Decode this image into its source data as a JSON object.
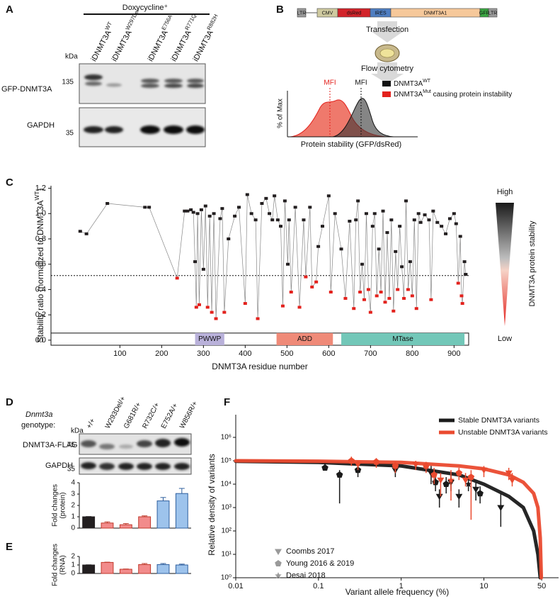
{
  "panel_labels": [
    "A",
    "B",
    "C",
    "D",
    "E",
    "F"
  ],
  "panel_a": {
    "condition": "Doxycycline⁺",
    "lanes": [
      {
        "name": "iDNMT3A",
        "sup": "WT"
      },
      {
        "name": "iDNMT3A",
        "sup": "W297Del"
      },
      {
        "name": "iDNMT3A",
        "sup": "E756A"
      },
      {
        "name": "iDNMT3A",
        "sup": "R771Q"
      },
      {
        "name": "iDNMT3A",
        "sup": "R882H"
      }
    ],
    "kda_label": "kDa",
    "markers": [
      135,
      35
    ],
    "blots": [
      "GFP-DNMT3A",
      "GAPDH"
    ]
  },
  "panel_b": {
    "vector": [
      "LTR",
      "CMV",
      "dsRed",
      "IRES",
      "DNMT3A1",
      "GFP",
      "LTR"
    ],
    "steps": [
      "Transfection",
      "Flow cytometry"
    ],
    "mfi": [
      "MFI",
      "MFI"
    ],
    "legend": [
      {
        "name": "DNMT3A",
        "sup": "WT"
      },
      {
        "name": "DNMT3A",
        "sup": "Mut",
        "rest": " causing protein instability"
      }
    ],
    "ylabel": "% of Max",
    "xlabel": "Protein stability (GFP/dsRed)"
  },
  "panel_d_blot": {
    "gene": "Dnmt3a",
    "genotype_label": "genotype:",
    "kda_label": "kDa",
    "markers": [
      75,
      35
    ],
    "blots": [
      "DNMT3A-FLAG",
      "GAPDH"
    ]
  },
  "chart_data": [
    {
      "type": "line",
      "ylabel": "Stability ratio (normalized to DNMT3A",
      "ylabel_sup": "WT",
      "ylabel_end": ")",
      "xlabel": "DNMT3A residue number",
      "x": [
        5,
        20,
        70,
        160,
        170,
        237,
        255,
        262,
        270,
        276,
        280,
        283,
        286,
        290,
        295,
        300,
        305,
        310,
        315,
        320,
        325,
        330,
        340,
        345,
        350,
        360,
        375,
        385,
        400,
        405,
        415,
        425,
        430,
        440,
        450,
        458,
        465,
        470,
        478,
        485,
        490,
        495,
        502,
        505,
        510,
        520,
        530,
        540,
        545,
        555,
        560,
        570,
        575,
        585,
        600,
        605,
        615,
        630,
        640,
        650,
        660,
        665,
        670,
        675,
        680,
        685,
        690,
        695,
        700,
        705,
        710,
        715,
        720,
        725,
        730,
        735,
        740,
        745,
        750,
        755,
        760,
        765,
        770,
        775,
        780,
        785,
        790,
        795,
        800,
        805,
        810,
        815,
        820,
        830,
        840,
        845,
        850,
        860,
        870,
        880,
        890,
        900,
        905,
        910,
        915,
        918,
        920,
        925,
        928
      ],
      "values": [
        0.86,
        0.84,
        1.08,
        1.05,
        1.05,
        0.49,
        1.02,
        1.02,
        1.03,
        1.01,
        0.62,
        0.26,
        1.0,
        0.28,
        1.03,
        0.56,
        1.06,
        0.26,
        0.98,
        0.22,
        1.0,
        0.17,
        0.96,
        1.04,
        0.22,
        0.8,
        0.98,
        1.05,
        0.29,
        1.15,
        1.0,
        0.95,
        0.17,
        1.08,
        1.12,
        1.0,
        0.95,
        1.14,
        0.95,
        0.9,
        0.27,
        1.1,
        0.6,
        0.95,
        0.38,
        1.05,
        0.26,
        0.95,
        0.5,
        1.05,
        0.42,
        0.46,
        0.74,
        0.9,
        1.14,
        0.38,
        1.0,
        0.72,
        0.33,
        0.94,
        0.25,
        0.95,
        1.1,
        0.38,
        0.6,
        0.32,
        1.0,
        0.4,
        0.22,
        0.9,
        1.0,
        0.35,
        0.72,
        0.38,
        1.02,
        0.3,
        0.85,
        0.33,
        0.95,
        0.23,
        0.7,
        0.4,
        0.9,
        0.58,
        0.33,
        1.1,
        0.4,
        0.62,
        0.35,
        0.95,
        0.25,
        1.0,
        0.93,
        0.99,
        0.95,
        0.32,
        1.02,
        0.93,
        0.9,
        0.84,
        0.96,
        1.0,
        0.92,
        0.45,
        0.82,
        0.35,
        0.29,
        0.62,
        0.52
      ],
      "point_colors": [
        "#231f20",
        "#231f20",
        "#231f20",
        "#231f20",
        "#231f20",
        "#e3211c",
        "#231f20",
        "#231f20",
        "#231f20",
        "#231f20",
        "#231f20",
        "#e3211c",
        "#231f20",
        "#e3211c",
        "#231f20",
        "#231f20",
        "#231f20",
        "#e3211c",
        "#231f20",
        "#e3211c",
        "#231f20",
        "#e3211c",
        "#231f20",
        "#231f20",
        "#e3211c",
        "#231f20",
        "#231f20",
        "#231f20",
        "#e3211c",
        "#231f20",
        "#231f20",
        "#231f20",
        "#e3211c",
        "#231f20",
        "#231f20",
        "#231f20",
        "#231f20",
        "#231f20",
        "#231f20",
        "#231f20",
        "#e3211c",
        "#231f20",
        "#231f20",
        "#231f20",
        "#e3211c",
        "#231f20",
        "#e3211c",
        "#231f20",
        "#e3211c",
        "#231f20",
        "#e3211c",
        "#e3211c",
        "#231f20",
        "#231f20",
        "#231f20",
        "#e3211c",
        "#231f20",
        "#231f20",
        "#e3211c",
        "#231f20",
        "#e3211c",
        "#231f20",
        "#231f20",
        "#e3211c",
        "#231f20",
        "#e3211c",
        "#231f20",
        "#e3211c",
        "#e3211c",
        "#231f20",
        "#231f20",
        "#e3211c",
        "#231f20",
        "#e3211c",
        "#231f20",
        "#e3211c",
        "#231f20",
        "#e3211c",
        "#231f20",
        "#e3211c",
        "#231f20",
        "#e3211c",
        "#231f20",
        "#231f20",
        "#e3211c",
        "#231f20",
        "#e3211c",
        "#231f20",
        "#e3211c",
        "#231f20",
        "#e3211c",
        "#231f20",
        "#231f20",
        "#231f20",
        "#231f20",
        "#e3211c",
        "#231f20",
        "#231f20",
        "#231f20",
        "#231f20",
        "#231f20",
        "#231f20",
        "#231f20",
        "#e3211c",
        "#231f20",
        "#e3211c",
        "#e3211c",
        "#231f20",
        "#231f20"
      ],
      "line_color": "#888888",
      "threshold": 0.51,
      "xlim": [
        -65,
        935
      ],
      "ylim": [
        -0.04,
        1.22
      ],
      "xticks": [
        100,
        200,
        300,
        400,
        500,
        600,
        700,
        800,
        900
      ],
      "yticks": [
        {
          "value": 0,
          "label": "0.0"
        },
        0.2,
        0.4,
        0.6,
        0.8,
        {
          "value": 1,
          "label": "1.0"
        },
        1.2
      ],
      "domains": [
        {
          "name": "PWWP",
          "start": 280,
          "end": 350,
          "color": "#b9b1da"
        },
        {
          "name": "ADD",
          "start": 475,
          "end": 610,
          "color": "#ef8a78"
        },
        {
          "name": "MTase",
          "start": 630,
          "end": 925,
          "color": "#72c7b8"
        }
      ],
      "colorbar": {
        "high": "High",
        "low": "Low",
        "label": "DNMT3A protein stability"
      }
    },
    {
      "type": "bar",
      "categories": [
        "+/+",
        "W293Del/+",
        "G681R/+",
        "R732C/+",
        "E752A/+",
        "W856R/+"
      ],
      "values": [
        1.0,
        0.45,
        0.3,
        1.0,
        2.4,
        3.05
      ],
      "errors": [
        0.02,
        0.1,
        0.1,
        0.08,
        0.3,
        0.45
      ],
      "colors": [
        "#231f20",
        "#f28b8b",
        "#f28b8b",
        "#f28b8b",
        "#9dc3ec",
        "#9dc3ec"
      ],
      "edge_colors": [
        "#231f20",
        "#c0392b",
        "#c0392b",
        "#c0392b",
        "#2f5f9e",
        "#2f5f9e"
      ],
      "ylabel": [
        "Fold changes",
        "(protein)"
      ],
      "ylim": [
        0,
        4
      ],
      "yticks": [
        0,
        1,
        2,
        3,
        4
      ]
    },
    {
      "type": "bar",
      "categories": [
        null,
        null,
        null,
        null,
        null,
        null
      ],
      "values": [
        1.0,
        1.3,
        0.5,
        1.05,
        1.05,
        1.0
      ],
      "errors": [
        0.02,
        0.03,
        0.03,
        0.12,
        0.12,
        0.1
      ],
      "colors": [
        "#231f20",
        "#f28b8b",
        "#f28b8b",
        "#f28b8b",
        "#9dc3ec",
        "#9dc3ec"
      ],
      "edge_colors": [
        "#231f20",
        "#c0392b",
        "#c0392b",
        "#c0392b",
        "#2f5f9e",
        "#2f5f9e"
      ],
      "ylabel": [
        "Fold changes",
        "(RNA)"
      ],
      "ylim": [
        0,
        2
      ],
      "yticks": [
        0,
        1,
        2
      ]
    },
    {
      "type": "scatter",
      "xlabel": "Variant allele frequency (%)",
      "ylabel": "Relative density of variants",
      "log_x": true,
      "log_y": true,
      "xlim": [
        0.01,
        80
      ],
      "ylim": [
        1,
        1000000
      ],
      "xticks": [
        0.01,
        0.1,
        1,
        10,
        50
      ],
      "yticks": [
        {
          "value": 1,
          "label": "10⁰"
        },
        {
          "value": 10,
          "label": "10¹"
        },
        {
          "value": 100,
          "label": "10²"
        },
        {
          "value": 1000,
          "label": "10³"
        },
        {
          "value": 10000,
          "label": "10⁴"
        },
        {
          "value": 100000,
          "label": "10⁵"
        },
        {
          "value": 1000000,
          "label": "10⁶"
        }
      ],
      "legend": "upper right",
      "series": [
        {
          "name": "Stable DNMT3A variants",
          "color": "#1a1a1a",
          "curve_x": [
            0.01,
            0.1,
            1,
            5,
            10,
            20,
            30,
            40,
            45,
            48
          ],
          "curve": [
            95000,
            85000,
            60000,
            25000,
            10000,
            3000,
            1000,
            100,
            10,
            1
          ],
          "x": [
            0.12,
            0.18,
            0.3,
            0.85,
            2.3,
            2.6,
            2.9,
            3.5,
            4.0,
            5.0,
            6.5,
            8,
            9,
            16
          ],
          "values": [
            50000,
            25000,
            40000,
            40000,
            30000,
            12000,
            3000,
            10000,
            12000,
            3000,
            10000,
            6000,
            4000,
            1000
          ],
          "lower": [
            40000,
            1500,
            20000,
            20000,
            10000,
            5000,
            1000,
            4000,
            5000,
            1000,
            5000,
            2000,
            1500,
            150
          ],
          "upper": [
            80000,
            40000,
            60000,
            60000,
            60000,
            40000,
            6000,
            20000,
            25000,
            6000,
            20000,
            12000,
            8000,
            4000
          ],
          "shapes": [
            "pentagon",
            "pentagon",
            "pentagon",
            "triangle",
            "triangle",
            "pentagon",
            "triangle",
            "pentagon",
            "triangle",
            "triangle",
            "star",
            "triangle",
            "pentagon",
            "triangle"
          ]
        },
        {
          "name": "Unstable DNMT3A variants",
          "color": "#ea4a2f",
          "curve_x": [
            0.01,
            0.1,
            1,
            5,
            10,
            20,
            30,
            40,
            45,
            48,
            49.5
          ],
          "curve": [
            100000,
            96000,
            85000,
            60000,
            45000,
            25000,
            12000,
            4000,
            1000,
            50,
            1
          ],
          "x": [
            0.25,
            0.3,
            0.5,
            0.85,
            1.5,
            2.0,
            2.5,
            3.0,
            4.0,
            5.0,
            6.0,
            7.0,
            10,
            20,
            22
          ],
          "values": [
            100000,
            70000,
            90000,
            60000,
            70000,
            60000,
            25000,
            15000,
            15000,
            30000,
            15000,
            20000,
            40000,
            30000,
            15000
          ],
          "lower": [
            60000,
            40000,
            50000,
            30000,
            40000,
            30000,
            10000,
            3000,
            2000,
            15000,
            8000,
            300,
            20000,
            15000,
            8000
          ],
          "upper": [
            150000,
            100000,
            130000,
            90000,
            100000,
            90000,
            50000,
            30000,
            40000,
            50000,
            30000,
            40000,
            60000,
            50000,
            30000
          ],
          "shapes": [
            "pentagon",
            "triangle",
            "pentagon",
            "pentagon",
            "triangle",
            "pentagon",
            "pentagon",
            "triangle",
            "star",
            "pentagon",
            "triangle",
            "pentagon",
            "triangle",
            "triangle",
            "triangle"
          ]
        }
      ],
      "marker_legend": [
        {
          "label": "Coombs 2017",
          "shape": "triangle"
        },
        {
          "label": "Young 2016 & 2019",
          "shape": "pentagon"
        },
        {
          "label": "Desai 2018",
          "shape": "star"
        }
      ]
    }
  ]
}
